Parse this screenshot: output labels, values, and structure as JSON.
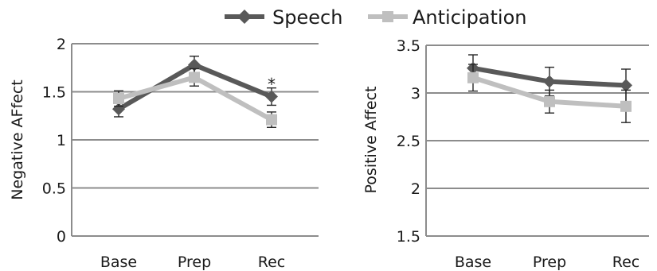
{
  "legend": {
    "position": "top-center",
    "items": [
      {
        "label": "Speech",
        "color": "#595959",
        "marker": "diamond"
      },
      {
        "label": "Anticipation",
        "color": "#bfbfbf",
        "marker": "square"
      }
    ]
  },
  "chart_data": [
    {
      "type": "line",
      "ylabel": "Negative AFfect",
      "categories": [
        "Base",
        "Prep",
        "Rec"
      ],
      "ylim": [
        0,
        2
      ],
      "yticks": [
        0,
        0.5,
        1,
        1.5,
        2
      ],
      "grid": true,
      "series": [
        {
          "name": "Speech",
          "color": "#595959",
          "marker": "diamond",
          "values": [
            1.32,
            1.78,
            1.45
          ],
          "errors": [
            0.08,
            0.09,
            0.09
          ]
        },
        {
          "name": "Anticipation",
          "color": "#bfbfbf",
          "marker": "square",
          "values": [
            1.43,
            1.65,
            1.21
          ],
          "errors": [
            0.08,
            0.09,
            0.08
          ]
        }
      ],
      "annotations": [
        {
          "text": "*",
          "category": "Rec",
          "y": 1.62
        }
      ]
    },
    {
      "type": "line",
      "ylabel": "Positive Affect",
      "categories": [
        "Base",
        "Prep",
        "Rec"
      ],
      "ylim": [
        1.5,
        3.5
      ],
      "yticks": [
        1.5,
        2,
        2.5,
        3,
        3.5
      ],
      "grid": true,
      "series": [
        {
          "name": "Speech",
          "color": "#595959",
          "marker": "diamond",
          "values": [
            3.26,
            3.12,
            3.08
          ],
          "errors": [
            0.14,
            0.15,
            0.17
          ]
        },
        {
          "name": "Anticipation",
          "color": "#bfbfbf",
          "marker": "square",
          "values": [
            3.16,
            2.91,
            2.86
          ],
          "errors": [
            0.14,
            0.12,
            0.17
          ]
        }
      ],
      "annotations": []
    }
  ]
}
